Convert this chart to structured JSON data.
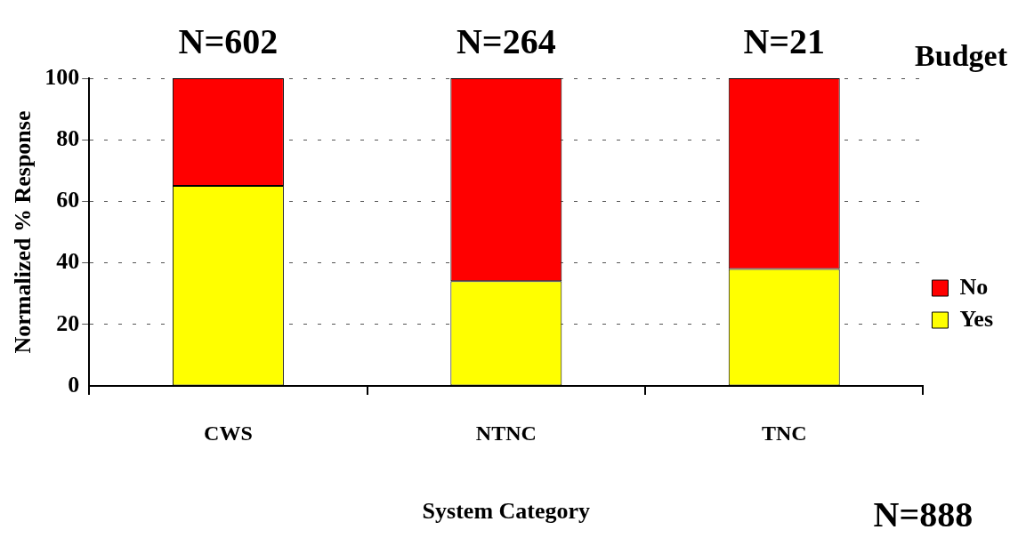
{
  "chart_data": {
    "type": "bar",
    "stacked": true,
    "xlabel": "System Category",
    "ylabel": "Normalized % Response",
    "legend_title": "Budget",
    "legend": "right",
    "grid": "y",
    "categories": [
      "CWS",
      "NTNC",
      "TNC"
    ],
    "series": [
      {
        "name": "Yes",
        "color": "#ffff00",
        "values": [
          65,
          34,
          38
        ]
      },
      {
        "name": "No",
        "color": "#ff0000",
        "values": [
          35,
          66,
          62
        ]
      }
    ],
    "ylim": [
      0,
      100
    ],
    "yticks": [
      0,
      20,
      40,
      60,
      80,
      100
    ],
    "annotations": [
      "N=602",
      "N=264",
      "N=21",
      "N=888"
    ]
  }
}
